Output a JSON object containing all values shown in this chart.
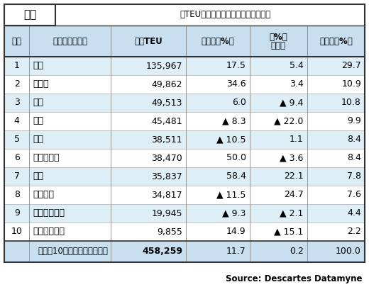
{
  "title_left": "復航",
  "title_right": "（TEU、最終仕向地ベース・実入り）",
  "headers": [
    "順位",
    "アジア国・地域",
    "１月TEU",
    "前年比（%）",
    "前月比\n（%）",
    "シエア（%）"
  ],
  "rows": [
    [
      "1",
      "中国",
      "135,967",
      "17.5",
      "5.4",
      "29.7"
    ],
    [
      "2",
      "インド",
      "49,862",
      "34.6",
      "3.4",
      "10.9"
    ],
    [
      "3",
      "日本",
      "49,513",
      "6.0",
      "▲ 9.4",
      "10.8"
    ],
    [
      "4",
      "韓国",
      "45,481",
      "▲ 8.3",
      "▲ 22.0",
      "9.9"
    ],
    [
      "5",
      "台湾",
      "38,511",
      "▲ 10.5",
      "1.1",
      "8.4"
    ],
    [
      "6",
      "マレーシア",
      "38,470",
      "50.0",
      "▲ 3.6",
      "8.4"
    ],
    [
      "7",
      "タイ",
      "35,837",
      "58.4",
      "22.1",
      "7.8"
    ],
    [
      "8",
      "ベトナム",
      "34,817",
      "▲ 11.5",
      "24.7",
      "7.6"
    ],
    [
      "9",
      "インドネシア",
      "19,945",
      "▲ 9.3",
      "▲ 2.1",
      "4.4"
    ],
    [
      "10",
      "シンガポール",
      "9,855",
      "14.9",
      "▲ 15.1",
      "2.2"
    ]
  ],
  "footer": [
    "アジア10カ国・地域向け合計",
    "458,259",
    "11.7",
    "0.2",
    "100.0"
  ],
  "source": "Source: Descartes Datamyne",
  "header_bg": "#c8dff0",
  "row_bg_even": "#ddeef7",
  "row_bg_odd": "#ffffff",
  "footer_bg": "#c8dff0",
  "title_bg": "#ffffff",
  "title_fg": "#000000",
  "title_box_bg": "#ffffff",
  "title_box_border": "#333333"
}
